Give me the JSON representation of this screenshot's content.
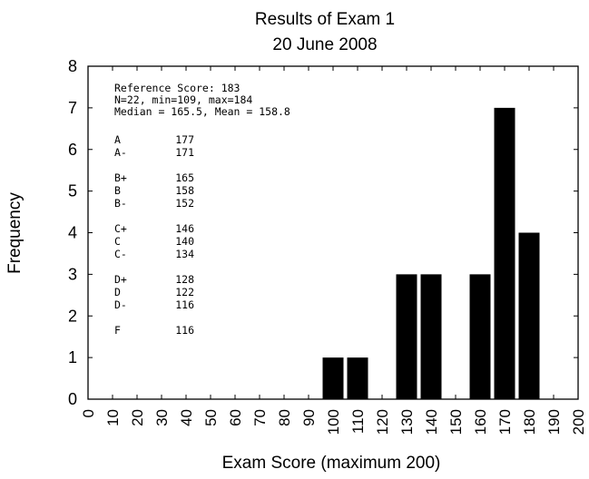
{
  "chart_data": {
    "type": "bar",
    "title": "Results of Exam 1",
    "subtitle": "20 June 2008",
    "xlabel": "Exam Score (maximum 200)",
    "ylabel": "Frequency",
    "xlim": [
      0,
      200
    ],
    "ylim": [
      0,
      8
    ],
    "xticks": [
      "0",
      "10",
      "20",
      "30",
      "40",
      "50",
      "60",
      "70",
      "80",
      "90",
      "100",
      "110",
      "120",
      "130",
      "140",
      "150",
      "160",
      "170",
      "180",
      "190",
      "200"
    ],
    "yticks": [
      "0",
      "1",
      "2",
      "3",
      "4",
      "5",
      "6",
      "7",
      "8"
    ],
    "bin_width": 10,
    "bars": [
      {
        "x": 100,
        "value": 1
      },
      {
        "x": 110,
        "value": 1
      },
      {
        "x": 130,
        "value": 3
      },
      {
        "x": 140,
        "value": 3
      },
      {
        "x": 160,
        "value": 3
      },
      {
        "x": 170,
        "value": 7
      },
      {
        "x": 180,
        "value": 4
      }
    ],
    "grid": false,
    "annotations": {
      "reference": "Reference Score: 183",
      "stats": "N=22, min=109, max=184",
      "summary": "Median = 165.5, Mean = 158.8",
      "grade_groups": [
        [
          {
            "grade": "A",
            "score": "177"
          },
          {
            "grade": "A-",
            "score": "171"
          }
        ],
        [
          {
            "grade": "B+",
            "score": "165"
          },
          {
            "grade": "B",
            "score": "158"
          },
          {
            "grade": "B-",
            "score": "152"
          }
        ],
        [
          {
            "grade": "C+",
            "score": "146"
          },
          {
            "grade": "C",
            "score": "140"
          },
          {
            "grade": "C-",
            "score": "134"
          }
        ],
        [
          {
            "grade": "D+",
            "score": "128"
          },
          {
            "grade": "D",
            "score": "122"
          },
          {
            "grade": "D-",
            "score": "116"
          }
        ],
        [
          {
            "grade": "F",
            "score": "116"
          }
        ]
      ]
    }
  }
}
